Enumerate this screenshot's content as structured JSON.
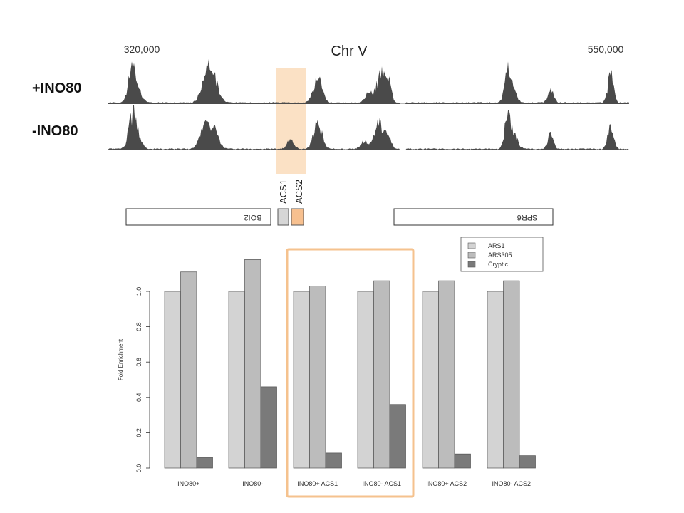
{
  "tracks": {
    "chromosome": "Chr V",
    "start_label": "320,000",
    "end_label": "550,000",
    "rows": [
      {
        "label": "+INO80"
      },
      {
        "label": "-INO80"
      }
    ],
    "acs_labels": [
      "ACS1",
      "ACS2"
    ],
    "genes": [
      "BOI2",
      "SPR6"
    ]
  },
  "colors": {
    "track": "#4a4a4a",
    "highlight": "#f9d7b2",
    "box_outline": "#f5c28e",
    "ARS1": "#d3d3d3",
    "ARS305": "#bcbcbc",
    "Cryptic": "#7a7a7a"
  },
  "chart_data": {
    "type": "bar",
    "categories": [
      "INO80+",
      "INO80-",
      "INO80+ ACS1",
      "INO80- ACS1",
      "INO80+ ACS2",
      "INO80- ACS2"
    ],
    "series": [
      {
        "name": "ARS1",
        "values": [
          1.0,
          1.0,
          1.0,
          1.0,
          1.0,
          1.0
        ]
      },
      {
        "name": "ARS305",
        "values": [
          1.11,
          1.18,
          1.03,
          1.06,
          1.06,
          1.06
        ]
      },
      {
        "name": "Cryptic",
        "values": [
          0.06,
          0.46,
          0.085,
          0.36,
          0.08,
          0.07
        ]
      }
    ],
    "ylabel": "Fold Enrichment",
    "ylim": [
      0,
      1.2
    ],
    "yticks": [
      "0.0",
      "0.2",
      "0.4",
      "0.6",
      "0.8",
      "1.0"
    ],
    "legend_position": "top-right",
    "grid": false
  }
}
